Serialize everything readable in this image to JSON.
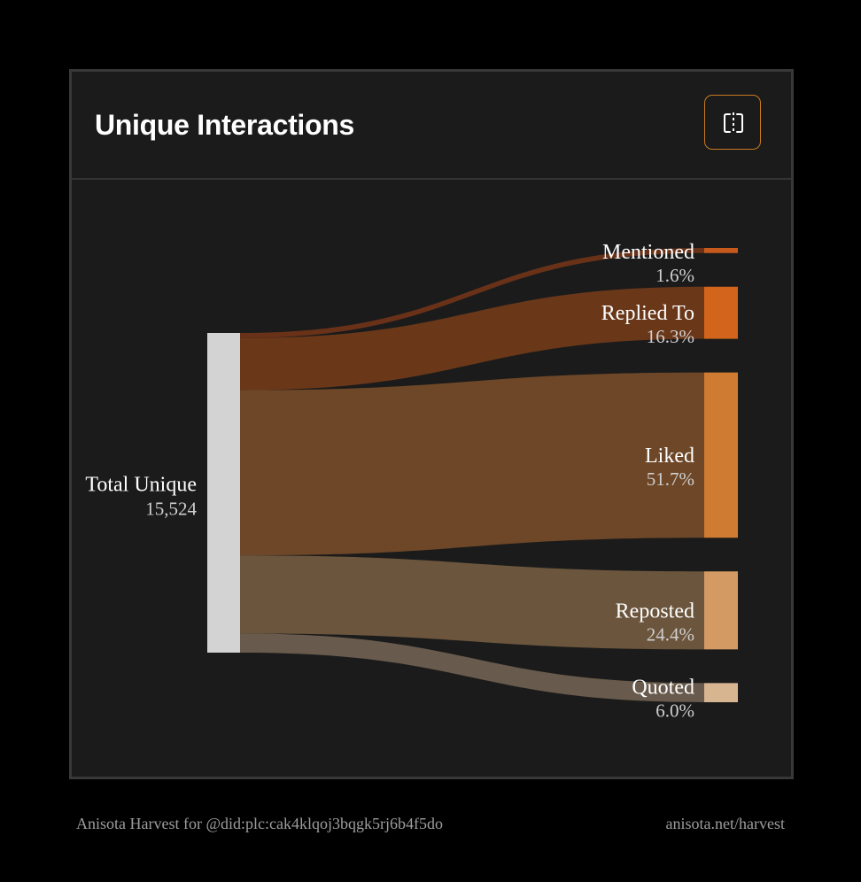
{
  "card": {
    "title": "Unique Interactions",
    "toggle_icon": "split-view-icon"
  },
  "chart_data": {
    "type": "sankey",
    "source": {
      "label": "Total Unique",
      "value_text": "15,524",
      "value": 15524,
      "color": "#d3d3d3"
    },
    "targets": [
      {
        "label": "Mentioned",
        "percent_text": "1.6%",
        "percent": 1.6,
        "node_color": "#c55a1c",
        "link_color": "#6e3418"
      },
      {
        "label": "Replied To",
        "percent_text": "16.3%",
        "percent": 16.3,
        "node_color": "#d2651b",
        "link_color": "#6f3a19"
      },
      {
        "label": "Liked",
        "percent_text": "51.7%",
        "percent": 51.7,
        "node_color": "#cf7b32",
        "link_color": "#724a28"
      },
      {
        "label": "Reposted",
        "percent_text": "24.4%",
        "percent": 24.4,
        "node_color": "#d49a63",
        "link_color": "#70583f"
      },
      {
        "label": "Quoted",
        "percent_text": "6.0%",
        "percent": 6.0,
        "node_color": "#d7b591",
        "link_color": "#6d5e4f"
      }
    ]
  },
  "footer": {
    "left": "Anisota Harvest for @did:plc:cak4klqoj3bqgk5rj6b4f5do",
    "right": "anisota.net/harvest"
  },
  "colors": {
    "page_background": "#000000",
    "card_background": "#1b1b1b",
    "accent": "#c77a22"
  }
}
